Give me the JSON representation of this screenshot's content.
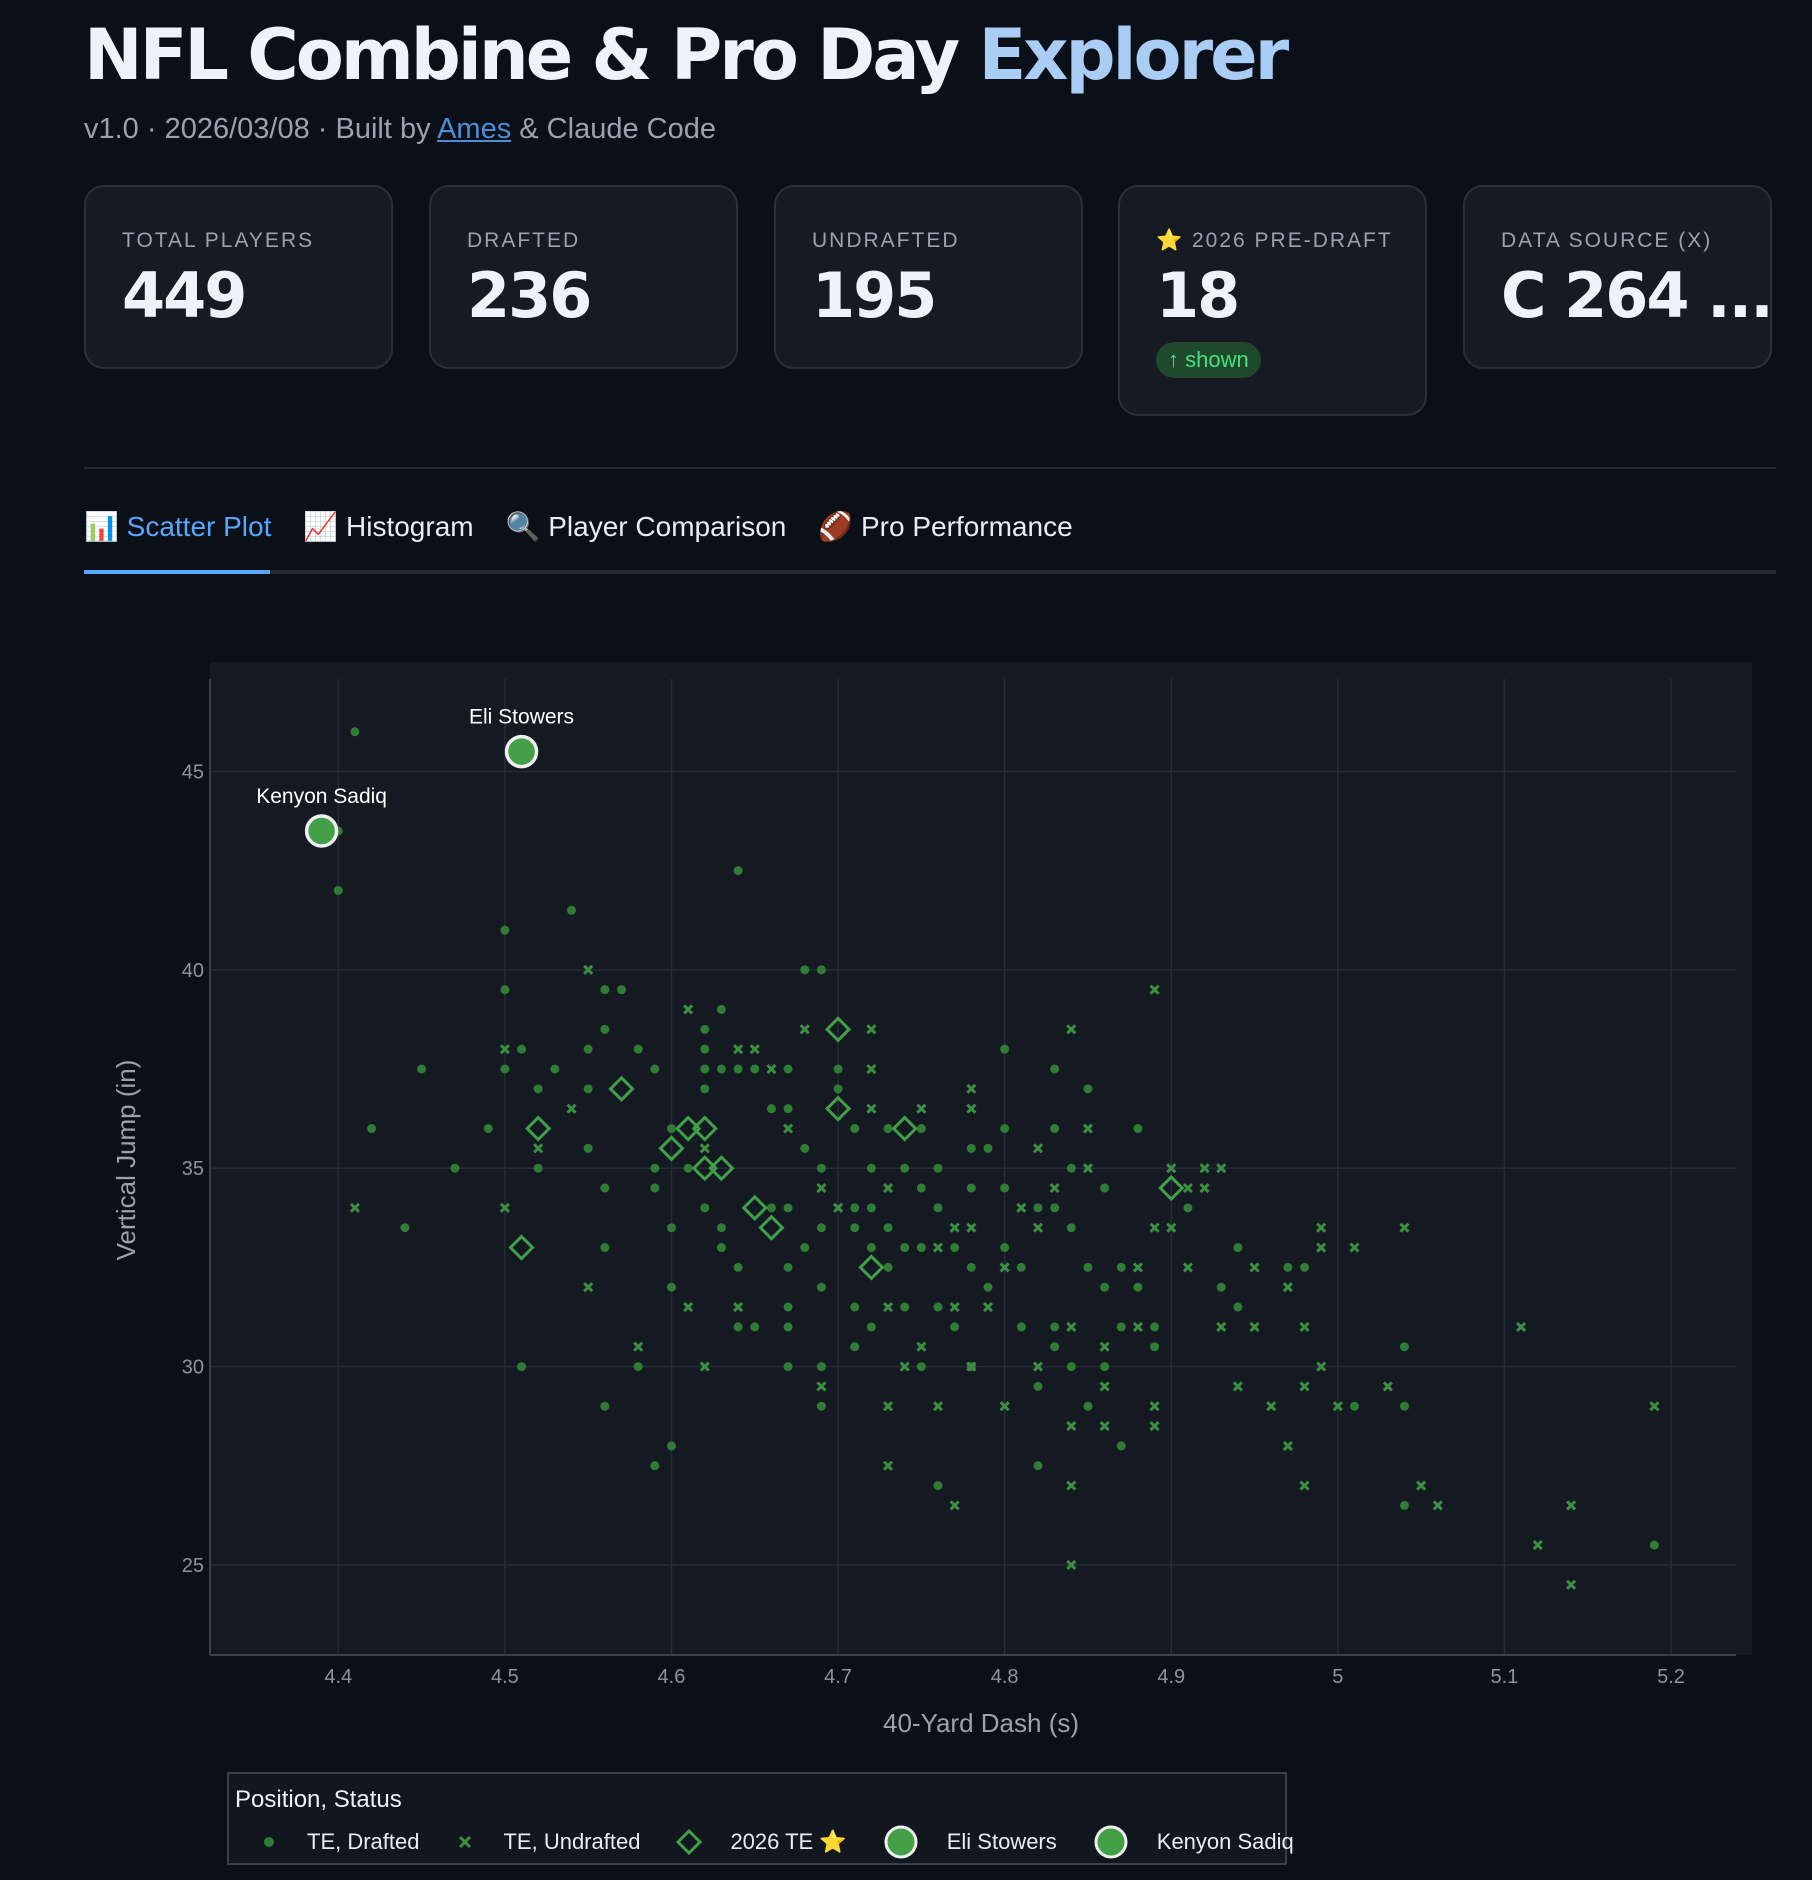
{
  "header": {
    "title_main": "NFL Combine & Pro Day",
    "title_accent": "Explorer",
    "subtitle_prefix": "v1.0 · 2026/03/08 · Built by",
    "author_link": "Ames",
    "subtitle_suffix": "& Claude Code"
  },
  "stats": [
    {
      "label": "TOTAL PLAYERS",
      "value": "449"
    },
    {
      "label": "DRAFTED",
      "value": "236"
    },
    {
      "label": "UNDRAFTED",
      "value": "195"
    },
    {
      "label": "⭐ 2026 PRE-DRAFT",
      "value": "18",
      "badge": "↑ shown"
    },
    {
      "label": "DATA SOURCE (X)",
      "value": "C 264 ..."
    }
  ],
  "tabs": [
    {
      "label": "📊 Scatter Plot",
      "active": true
    },
    {
      "label": "📈 Histogram"
    },
    {
      "label": "🔍 Player Comparison"
    },
    {
      "label": "🏈 Pro Performance"
    }
  ],
  "colors": {
    "drafted": "#2f7d35",
    "undrafted": "#3b8f41",
    "te2026": "#3fa046",
    "highlight": "#43a047",
    "accent": "#58a6ff"
  },
  "chart_data": {
    "type": "scatter",
    "xlabel": "40-Yard Dash (s)",
    "ylabel": "Vertical Jump (in)",
    "xlim": [
      4.323,
      5.239
    ],
    "ylim": [
      22.73,
      47.33
    ],
    "xticks": [
      4.4,
      4.5,
      4.6,
      4.7,
      4.8,
      4.9,
      5,
      5.1,
      5.2
    ],
    "xtick_labels": [
      "4.4",
      "4.5",
      "4.6",
      "4.7",
      "4.8",
      "4.9",
      "5",
      "5.1",
      "5.2"
    ],
    "yticks": [
      25,
      30,
      35,
      40,
      45
    ],
    "ytick_labels": [
      "25",
      "30",
      "35",
      "40",
      "45"
    ],
    "grid": true,
    "legend_title": "Position, Status",
    "legend_placement": "bottom",
    "series": [
      {
        "name": "TE, Drafted",
        "marker": "circle",
        "points": [
          [
            4.41,
            46
          ],
          [
            4.4,
            42
          ],
          [
            4.4,
            43.5
          ],
          [
            4.42,
            36
          ],
          [
            4.44,
            33.5
          ],
          [
            4.45,
            37.5
          ],
          [
            4.47,
            35
          ],
          [
            4.49,
            36
          ],
          [
            4.5,
            41
          ],
          [
            4.5,
            39.5
          ],
          [
            4.5,
            37.5
          ],
          [
            4.51,
            38
          ],
          [
            4.51,
            30
          ],
          [
            4.52,
            37
          ],
          [
            4.52,
            35
          ],
          [
            4.53,
            37.5
          ],
          [
            4.54,
            41.5
          ],
          [
            4.55,
            38
          ],
          [
            4.55,
            37
          ],
          [
            4.55,
            35.5
          ],
          [
            4.56,
            39.5
          ],
          [
            4.56,
            38.5
          ],
          [
            4.56,
            34.5
          ],
          [
            4.56,
            33
          ],
          [
            4.56,
            29
          ],
          [
            4.57,
            39.5
          ],
          [
            4.58,
            38
          ],
          [
            4.58,
            30
          ],
          [
            4.59,
            37.5
          ],
          [
            4.59,
            35
          ],
          [
            4.59,
            34.5
          ],
          [
            4.59,
            27.5
          ],
          [
            4.6,
            36
          ],
          [
            4.6,
            33.5
          ],
          [
            4.6,
            32
          ],
          [
            4.6,
            28
          ],
          [
            4.61,
            35
          ],
          [
            4.62,
            38.5
          ],
          [
            4.62,
            38
          ],
          [
            4.62,
            37.5
          ],
          [
            4.62,
            37
          ],
          [
            4.62,
            34
          ],
          [
            4.63,
            39
          ],
          [
            4.63,
            37.5
          ],
          [
            4.63,
            33.5
          ],
          [
            4.63,
            33
          ],
          [
            4.64,
            42.5
          ],
          [
            4.64,
            37.5
          ],
          [
            4.64,
            32.5
          ],
          [
            4.64,
            31
          ],
          [
            4.65,
            37.5
          ],
          [
            4.65,
            31
          ],
          [
            4.66,
            36.5
          ],
          [
            4.66,
            34
          ],
          [
            4.67,
            37.5
          ],
          [
            4.67,
            36.5
          ],
          [
            4.67,
            34
          ],
          [
            4.67,
            32.5
          ],
          [
            4.67,
            31.5
          ],
          [
            4.67,
            31
          ],
          [
            4.67,
            30
          ],
          [
            4.68,
            40
          ],
          [
            4.68,
            35.5
          ],
          [
            4.68,
            33
          ],
          [
            4.69,
            40
          ],
          [
            4.69,
            35
          ],
          [
            4.69,
            33.5
          ],
          [
            4.69,
            32
          ],
          [
            4.69,
            29
          ],
          [
            4.69,
            30
          ],
          [
            4.7,
            37.5
          ],
          [
            4.7,
            37
          ],
          [
            4.71,
            36
          ],
          [
            4.71,
            34
          ],
          [
            4.71,
            33.5
          ],
          [
            4.71,
            31.5
          ],
          [
            4.71,
            30.5
          ],
          [
            4.72,
            35
          ],
          [
            4.72,
            34
          ],
          [
            4.72,
            33
          ],
          [
            4.72,
            31
          ],
          [
            4.73,
            36
          ],
          [
            4.73,
            33.5
          ],
          [
            4.73,
            32.5
          ],
          [
            4.74,
            35
          ],
          [
            4.74,
            33
          ],
          [
            4.74,
            31.5
          ],
          [
            4.75,
            36
          ],
          [
            4.75,
            34.5
          ],
          [
            4.75,
            33
          ],
          [
            4.75,
            30
          ],
          [
            4.76,
            35
          ],
          [
            4.76,
            34
          ],
          [
            4.76,
            31.5
          ],
          [
            4.76,
            27
          ],
          [
            4.77,
            33
          ],
          [
            4.77,
            31
          ],
          [
            4.78,
            35.5
          ],
          [
            4.78,
            34.5
          ],
          [
            4.78,
            32.5
          ],
          [
            4.78,
            30
          ],
          [
            4.79,
            35.5
          ],
          [
            4.79,
            32
          ],
          [
            4.8,
            38
          ],
          [
            4.8,
            36
          ],
          [
            4.8,
            34.5
          ],
          [
            4.8,
            33
          ],
          [
            4.81,
            32.5
          ],
          [
            4.81,
            31
          ],
          [
            4.82,
            34
          ],
          [
            4.82,
            29.5
          ],
          [
            4.82,
            27.5
          ],
          [
            4.83,
            37.5
          ],
          [
            4.83,
            36
          ],
          [
            4.83,
            34
          ],
          [
            4.83,
            31
          ],
          [
            4.83,
            30.5
          ],
          [
            4.84,
            35
          ],
          [
            4.84,
            33.5
          ],
          [
            4.84,
            30
          ],
          [
            4.85,
            37
          ],
          [
            4.85,
            32.5
          ],
          [
            4.85,
            29
          ],
          [
            4.86,
            34.5
          ],
          [
            4.86,
            32
          ],
          [
            4.86,
            30
          ],
          [
            4.87,
            32.5
          ],
          [
            4.87,
            31
          ],
          [
            4.87,
            28
          ],
          [
            4.88,
            36
          ],
          [
            4.88,
            32
          ],
          [
            4.89,
            31
          ],
          [
            4.89,
            30.5
          ],
          [
            4.91,
            34
          ],
          [
            4.93,
            32
          ],
          [
            4.94,
            33
          ],
          [
            4.94,
            31.5
          ],
          [
            4.97,
            32.5
          ],
          [
            4.98,
            32.5
          ],
          [
            5.01,
            29
          ],
          [
            5.04,
            30.5
          ],
          [
            5.04,
            29
          ],
          [
            5.04,
            26.5
          ],
          [
            5.19,
            25.5
          ]
        ]
      },
      {
        "name": "TE, Undrafted",
        "marker": "x",
        "points": [
          [
            4.41,
            34
          ],
          [
            4.5,
            38
          ],
          [
            4.5,
            34
          ],
          [
            4.55,
            32
          ],
          [
            4.55,
            40
          ],
          [
            4.54,
            36.5
          ],
          [
            4.52,
            35.5
          ],
          [
            4.58,
            30.5
          ],
          [
            4.61,
            39
          ],
          [
            4.61,
            31.5
          ],
          [
            4.62,
            35.5
          ],
          [
            4.62,
            30
          ],
          [
            4.64,
            38
          ],
          [
            4.64,
            31.5
          ],
          [
            4.65,
            38
          ],
          [
            4.66,
            37.5
          ],
          [
            4.67,
            36
          ],
          [
            4.68,
            38.5
          ],
          [
            4.69,
            34.5
          ],
          [
            4.69,
            29.5
          ],
          [
            4.7,
            34
          ],
          [
            4.72,
            38.5
          ],
          [
            4.72,
            37.5
          ],
          [
            4.72,
            36.5
          ],
          [
            4.73,
            34.5
          ],
          [
            4.73,
            31.5
          ],
          [
            4.73,
            29
          ],
          [
            4.73,
            27.5
          ],
          [
            4.74,
            30
          ],
          [
            4.75,
            36.5
          ],
          [
            4.75,
            30.5
          ],
          [
            4.76,
            33
          ],
          [
            4.76,
            29
          ],
          [
            4.77,
            33.5
          ],
          [
            4.77,
            31.5
          ],
          [
            4.77,
            26.5
          ],
          [
            4.78,
            37
          ],
          [
            4.78,
            36.5
          ],
          [
            4.78,
            33.5
          ],
          [
            4.78,
            30
          ],
          [
            4.79,
            31.5
          ],
          [
            4.8,
            32.5
          ],
          [
            4.8,
            29
          ],
          [
            4.81,
            34
          ],
          [
            4.82,
            35.5
          ],
          [
            4.82,
            33.5
          ],
          [
            4.82,
            30
          ],
          [
            4.83,
            34.5
          ],
          [
            4.84,
            38.5
          ],
          [
            4.84,
            31
          ],
          [
            4.84,
            28.5
          ],
          [
            4.84,
            27
          ],
          [
            4.84,
            25
          ],
          [
            4.85,
            36
          ],
          [
            4.85,
            35
          ],
          [
            4.86,
            30.5
          ],
          [
            4.86,
            29.5
          ],
          [
            4.86,
            28.5
          ],
          [
            4.88,
            32.5
          ],
          [
            4.88,
            31
          ],
          [
            4.89,
            39.5
          ],
          [
            4.89,
            33.5
          ],
          [
            4.89,
            29
          ],
          [
            4.89,
            28.5
          ],
          [
            4.9,
            35
          ],
          [
            4.9,
            33.5
          ],
          [
            4.91,
            34.5
          ],
          [
            4.91,
            32.5
          ],
          [
            4.92,
            35
          ],
          [
            4.92,
            34.5
          ],
          [
            4.93,
            35
          ],
          [
            4.93,
            31
          ],
          [
            4.94,
            29.5
          ],
          [
            4.95,
            32.5
          ],
          [
            4.95,
            31
          ],
          [
            4.96,
            29
          ],
          [
            4.97,
            28
          ],
          [
            4.97,
            32
          ],
          [
            4.98,
            31
          ],
          [
            4.98,
            29.5
          ],
          [
            4.98,
            27
          ],
          [
            4.99,
            33.5
          ],
          [
            4.99,
            33
          ],
          [
            4.99,
            30
          ],
          [
            5.0,
            29
          ],
          [
            5.01,
            33
          ],
          [
            5.03,
            29.5
          ],
          [
            5.04,
            33.5
          ],
          [
            5.05,
            27
          ],
          [
            5.06,
            26.5
          ],
          [
            5.11,
            31
          ],
          [
            5.12,
            25.5
          ],
          [
            5.14,
            26.5
          ],
          [
            5.14,
            24.5
          ],
          [
            5.19,
            29
          ]
        ]
      },
      {
        "name": "2026 TE ⭐",
        "marker": "diamond-open",
        "points": [
          [
            4.51,
            33
          ],
          [
            4.52,
            36
          ],
          [
            4.57,
            37
          ],
          [
            4.6,
            35.5
          ],
          [
            4.61,
            36
          ],
          [
            4.62,
            36
          ],
          [
            4.62,
            35
          ],
          [
            4.63,
            35
          ],
          [
            4.65,
            34
          ],
          [
            4.66,
            33.5
          ],
          [
            4.7,
            38.5
          ],
          [
            4.7,
            36.5
          ],
          [
            4.72,
            32.5
          ],
          [
            4.74,
            36
          ],
          [
            4.9,
            34.5
          ]
        ]
      },
      {
        "name": "Eli Stowers",
        "marker": "circle-large",
        "label": "Eli Stowers",
        "points": [
          [
            4.51,
            45.5
          ]
        ]
      },
      {
        "name": "Kenyon Sadiq",
        "marker": "circle-large",
        "label": "Kenyon Sadiq",
        "points": [
          [
            4.39,
            43.5
          ]
        ]
      }
    ]
  }
}
